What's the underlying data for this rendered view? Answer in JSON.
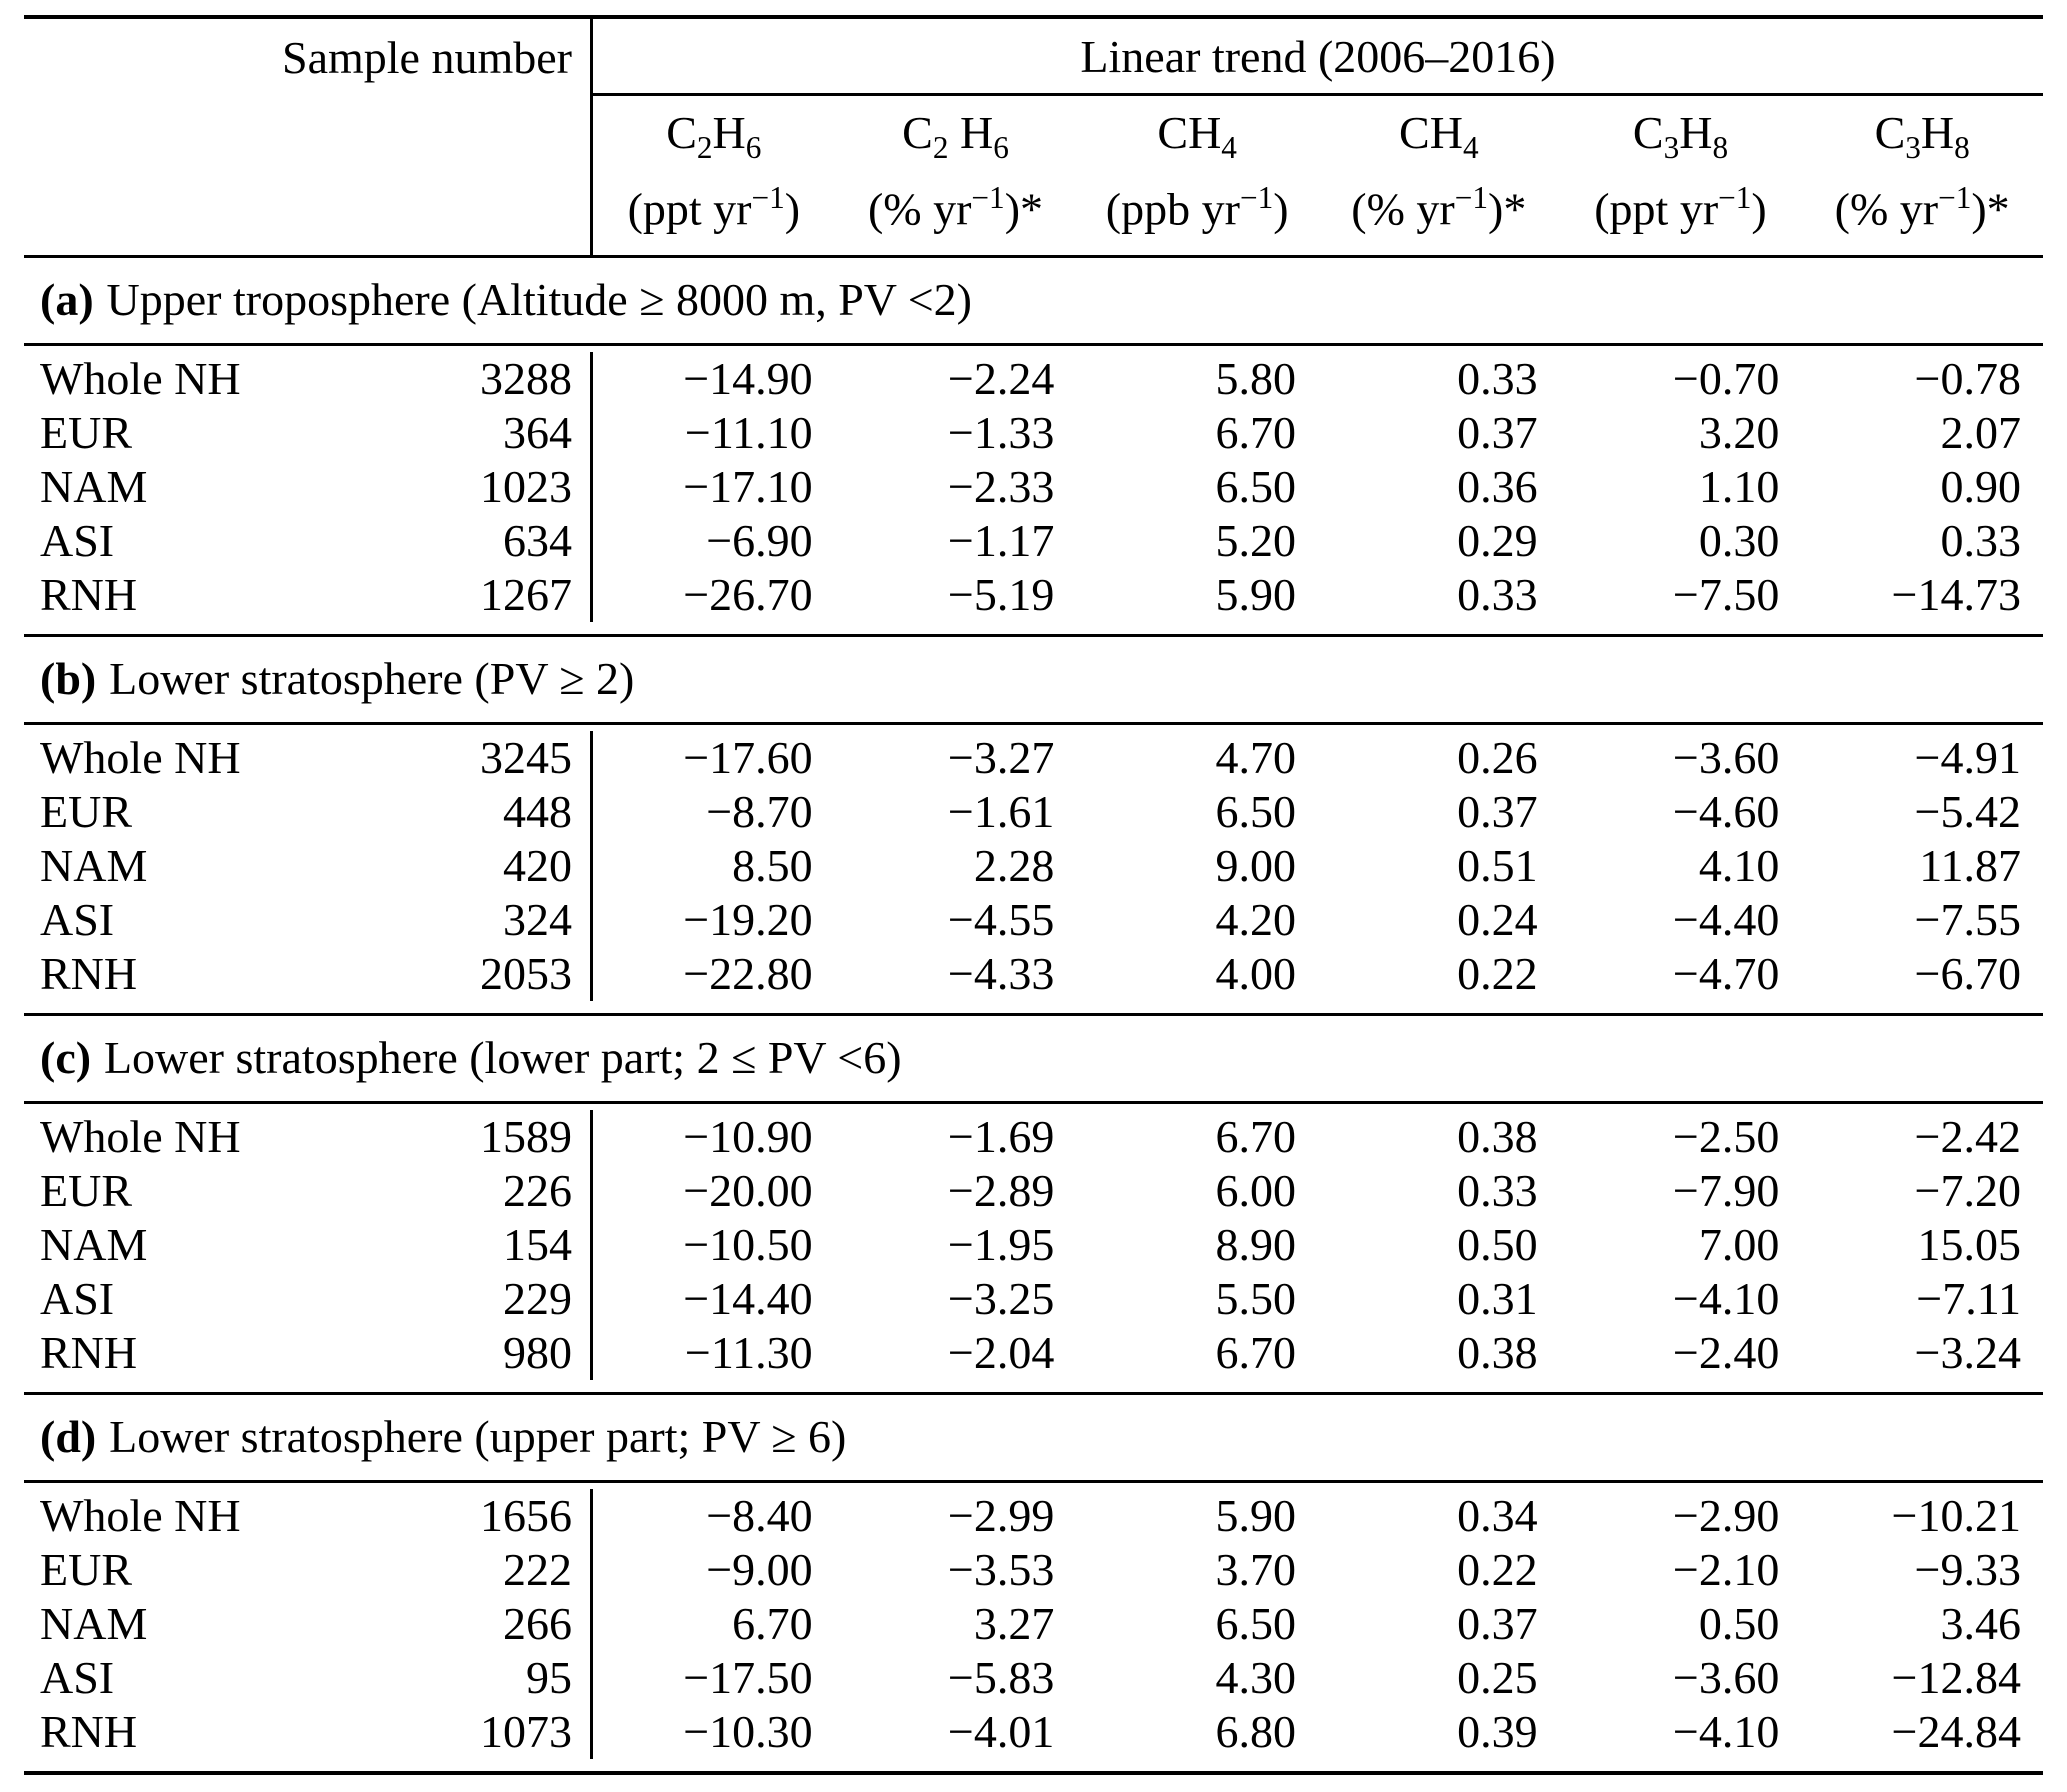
{
  "header": {
    "sample_number_label": "Sample number",
    "linear_trend_label": "Linear trend (2006–2016)",
    "columns": [
      {
        "formula_html": "C<sub>2</sub>H<sub>6</sub>",
        "unit_html": "(ppt yr<sup>−1</sup>)"
      },
      {
        "formula_html": "C<sub>2</sub> H<sub>6</sub>",
        "unit_html": "(% yr<sup>−1</sup>)*"
      },
      {
        "formula_html": "CH<sub>4</sub>",
        "unit_html": "(ppb yr<sup>−1</sup>)"
      },
      {
        "formula_html": "CH<sub>4</sub>",
        "unit_html": "(% yr<sup>−1</sup>)*"
      },
      {
        "formula_html": "C<sub>3</sub>H<sub>8</sub>",
        "unit_html": "(ppt yr<sup>−1</sup>)"
      },
      {
        "formula_html": "C<sub>3</sub>H<sub>8</sub>",
        "unit_html": "(% yr<sup>−1</sup>)*"
      }
    ]
  },
  "sections": [
    {
      "title_prefix": "(a)",
      "title_rest": "Upper troposphere (Altitude ≥ 8000 m, PV <2)",
      "rows": [
        {
          "label": "Whole NH",
          "sample": "3288",
          "values": [
            "−14.90",
            "−2.24",
            "5.80",
            "0.33",
            "−0.70",
            "−0.78"
          ]
        },
        {
          "label": "EUR",
          "sample": "364",
          "values": [
            "−11.10",
            "−1.33",
            "6.70",
            "0.37",
            "3.20",
            "2.07"
          ]
        },
        {
          "label": "NAM",
          "sample": "1023",
          "values": [
            "−17.10",
            "−2.33",
            "6.50",
            "0.36",
            "1.10",
            "0.90"
          ]
        },
        {
          "label": "ASI",
          "sample": "634",
          "values": [
            "−6.90",
            "−1.17",
            "5.20",
            "0.29",
            "0.30",
            "0.33"
          ]
        },
        {
          "label": "RNH",
          "sample": "1267",
          "values": [
            "−26.70",
            "−5.19",
            "5.90",
            "0.33",
            "−7.50",
            "−14.73"
          ]
        }
      ]
    },
    {
      "title_prefix": "(b)",
      "title_rest": "Lower stratosphere (PV ≥ 2)",
      "rows": [
        {
          "label": "Whole NH",
          "sample": "3245",
          "values": [
            "−17.60",
            "−3.27",
            "4.70",
            "0.26",
            "−3.60",
            "−4.91"
          ]
        },
        {
          "label": "EUR",
          "sample": "448",
          "values": [
            "−8.70",
            "−1.61",
            "6.50",
            "0.37",
            "−4.60",
            "−5.42"
          ]
        },
        {
          "label": "NAM",
          "sample": "420",
          "values": [
            "8.50",
            "2.28",
            "9.00",
            "0.51",
            "4.10",
            "11.87"
          ]
        },
        {
          "label": "ASI",
          "sample": "324",
          "values": [
            "−19.20",
            "−4.55",
            "4.20",
            "0.24",
            "−4.40",
            "−7.55"
          ]
        },
        {
          "label": "RNH",
          "sample": "2053",
          "values": [
            "−22.80",
            "−4.33",
            "4.00",
            "0.22",
            "−4.70",
            "−6.70"
          ]
        }
      ]
    },
    {
      "title_prefix": "(c)",
      "title_rest": "Lower stratosphere (lower part; 2 ≤ PV <6)",
      "rows": [
        {
          "label": "Whole NH",
          "sample": "1589",
          "values": [
            "−10.90",
            "−1.69",
            "6.70",
            "0.38",
            "−2.50",
            "−2.42"
          ]
        },
        {
          "label": "EUR",
          "sample": "226",
          "values": [
            "−20.00",
            "−2.89",
            "6.00",
            "0.33",
            "−7.90",
            "−7.20"
          ]
        },
        {
          "label": "NAM",
          "sample": "154",
          "values": [
            "−10.50",
            "−1.95",
            "8.90",
            "0.50",
            "7.00",
            "15.05"
          ]
        },
        {
          "label": "ASI",
          "sample": "229",
          "values": [
            "−14.40",
            "−3.25",
            "5.50",
            "0.31",
            "−4.10",
            "−7.11"
          ]
        },
        {
          "label": "RNH",
          "sample": "980",
          "values": [
            "−11.30",
            "−2.04",
            "6.70",
            "0.38",
            "−2.40",
            "−3.24"
          ]
        }
      ]
    },
    {
      "title_prefix": "(d)",
      "title_rest": "Lower stratosphere (upper part; PV ≥ 6)",
      "rows": [
        {
          "label": "Whole NH",
          "sample": "1656",
          "values": [
            "−8.40",
            "−2.99",
            "5.90",
            "0.34",
            "−2.90",
            "−10.21"
          ]
        },
        {
          "label": "EUR",
          "sample": "222",
          "values": [
            "−9.00",
            "−3.53",
            "3.70",
            "0.22",
            "−2.10",
            "−9.33"
          ]
        },
        {
          "label": "NAM",
          "sample": "266",
          "values": [
            "6.70",
            "3.27",
            "6.50",
            "0.37",
            "0.50",
            "3.46"
          ]
        },
        {
          "label": "ASI",
          "sample": "95",
          "values": [
            "−17.50",
            "−5.83",
            "4.30",
            "0.25",
            "−3.60",
            "−12.84"
          ]
        },
        {
          "label": "RNH",
          "sample": "1073",
          "values": [
            "−10.30",
            "−4.01",
            "6.80",
            "0.39",
            "−4.10",
            "−24.84"
          ]
        }
      ]
    }
  ]
}
